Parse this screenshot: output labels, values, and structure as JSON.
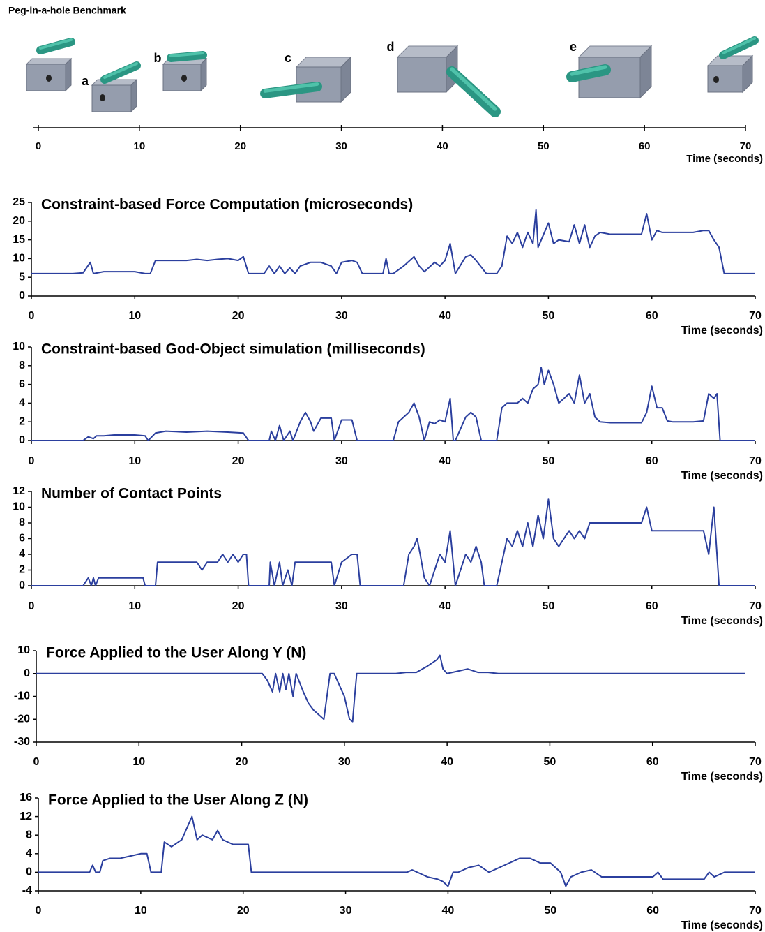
{
  "chart_data": [
    {
      "type": "timeline",
      "title": "Peg-in-a-hole Benchmark",
      "annotations": [
        "a",
        "b",
        "c",
        "d",
        "e"
      ],
      "xlim": [
        0,
        70
      ],
      "xticks": [
        0,
        10,
        20,
        30,
        40,
        50,
        60,
        70
      ],
      "x_label": "Time (seconds)"
    },
    {
      "type": "line",
      "title": "Constraint-based Force Computation (microseconds)",
      "x_label": "Time (seconds)",
      "xlim": [
        0,
        70
      ],
      "xticks": [
        0,
        10,
        20,
        30,
        40,
        50,
        60,
        70
      ],
      "ylim": [
        0,
        25
      ],
      "yticks": [
        0,
        5,
        10,
        15,
        20,
        25
      ],
      "color": "#2b3f9e",
      "x": [
        0,
        1,
        2,
        3,
        4,
        5,
        5.7,
        6,
        7,
        8,
        9,
        10,
        11,
        11.5,
        12,
        13,
        14,
        15,
        16,
        17,
        18,
        19,
        20,
        20.5,
        21,
        22,
        22.5,
        23,
        23.5,
        24,
        24.5,
        25,
        25.5,
        26,
        27,
        28,
        29,
        29.5,
        30,
        31,
        31.5,
        32,
        33,
        34,
        34.3,
        34.6,
        35,
        36,
        37,
        37.5,
        38,
        39,
        39.5,
        40,
        40.5,
        41,
        42,
        42.5,
        43,
        44,
        45,
        45.5,
        46,
        46.5,
        47,
        47.5,
        48,
        48.5,
        48.8,
        49,
        50,
        50.5,
        51,
        52,
        52.5,
        53,
        53.5,
        54,
        54.5,
        55,
        56,
        57,
        58,
        59,
        59.5,
        60,
        60.5,
        61,
        62,
        63,
        64,
        65,
        65.5,
        66,
        66.5,
        67,
        68,
        69,
        70
      ],
      "values": [
        6,
        6,
        6,
        6,
        6,
        6.2,
        9,
        6,
        6.5,
        6.5,
        6.5,
        6.5,
        6,
        6,
        9.5,
        9.5,
        9.5,
        9.5,
        9.8,
        9.5,
        9.8,
        10,
        9.5,
        10.5,
        6,
        6,
        6,
        8,
        6,
        8,
        6,
        7.5,
        6,
        8,
        9,
        9,
        8,
        6,
        9,
        9.5,
        9,
        6,
        6,
        6,
        10,
        6,
        6,
        8,
        10.5,
        8,
        6.5,
        9,
        8,
        9.5,
        14,
        6,
        10.5,
        11,
        9.5,
        6,
        6,
        8,
        16,
        14,
        17,
        13,
        17,
        14,
        23,
        13,
        19.5,
        14,
        15,
        14.5,
        19,
        14,
        19,
        13,
        16,
        17,
        16.5,
        16.5,
        16.5,
        16.5,
        22,
        15,
        17.5,
        17,
        17,
        17,
        17,
        17.5,
        17.5,
        15,
        13,
        6,
        6,
        6,
        6
      ]
    },
    {
      "type": "line",
      "title": "Constraint-based God-Object simulation (milliseconds)",
      "x_label": "Time (seconds)",
      "xlim": [
        0,
        70
      ],
      "xticks": [
        0,
        10,
        20,
        30,
        40,
        50,
        60,
        70
      ],
      "ylim": [
        0,
        10
      ],
      "yticks": [
        0,
        2,
        4,
        6,
        8,
        10
      ],
      "color": "#2b3f9e",
      "x": [
        0,
        5,
        5.5,
        6,
        6.3,
        7,
        8,
        10,
        11,
        11.3,
        12,
        13,
        15,
        17,
        19,
        20.5,
        21,
        23,
        23.2,
        23.6,
        24,
        24.4,
        25,
        25.3,
        26,
        26.5,
        27,
        27.3,
        28,
        29,
        29.3,
        30,
        31,
        31.5,
        35,
        35.5,
        36,
        36.5,
        37,
        37.5,
        38,
        38.5,
        39,
        39.5,
        40,
        40.5,
        40.8,
        41,
        42,
        42.5,
        43,
        43.5,
        45,
        45.5,
        46,
        47,
        47.5,
        48,
        48.5,
        49,
        49.3,
        49.6,
        50,
        50.5,
        51,
        52,
        52.5,
        53,
        53.5,
        54,
        54.5,
        55,
        56,
        58,
        59,
        59.5,
        60,
        60.5,
        61,
        61.5,
        62,
        64,
        65,
        65.5,
        66,
        66.3,
        66.6,
        70
      ],
      "values": [
        0,
        0,
        0.4,
        0.2,
        0.5,
        0.5,
        0.6,
        0.6,
        0.5,
        0,
        0.8,
        1,
        0.9,
        1,
        0.9,
        0.8,
        0,
        0,
        1,
        0,
        1.6,
        0,
        1,
        0,
        2,
        3,
        2,
        1,
        2.4,
        2.4,
        0,
        2.2,
        2.2,
        0,
        0,
        2,
        2.5,
        3,
        4,
        2.5,
        0,
        2,
        1.8,
        2.2,
        2,
        4.5,
        0,
        0,
        2.5,
        3,
        2.5,
        0,
        0,
        3.5,
        4,
        4,
        4.5,
        4,
        5.5,
        6,
        7.8,
        6,
        7.5,
        6,
        4,
        5,
        4,
        7,
        4,
        5,
        2.5,
        2,
        1.9,
        1.9,
        1.9,
        3,
        5.8,
        3.5,
        3.5,
        2.1,
        2,
        2,
        2.1,
        5,
        4.5,
        5,
        0,
        0
      ]
    },
    {
      "type": "line",
      "title": "Number of Contact Points",
      "x_label": "Time (seconds)",
      "xlim": [
        0,
        70
      ],
      "xticks": [
        0,
        10,
        20,
        30,
        40,
        50,
        60,
        70
      ],
      "ylim": [
        0,
        12
      ],
      "yticks": [
        0,
        2,
        4,
        6,
        8,
        10,
        12
      ],
      "color": "#2b3f9e",
      "x": [
        0,
        5,
        5.5,
        5.8,
        6,
        6.2,
        6.5,
        10,
        10.8,
        11,
        12,
        12.2,
        16,
        16.5,
        17,
        18,
        18.5,
        19,
        19.5,
        20,
        20.5,
        20.8,
        21,
        23,
        23.1,
        23.5,
        24,
        24.3,
        24.8,
        25.2,
        25.5,
        26,
        29,
        29.3,
        30,
        31,
        31.5,
        31.8,
        36,
        36.5,
        37,
        37.3,
        37.6,
        38,
        38.5,
        39,
        39.5,
        40,
        40.5,
        41,
        42,
        42.5,
        43,
        43.5,
        43.8,
        45,
        46,
        46.5,
        47,
        47.5,
        48,
        48.5,
        49,
        49.5,
        50,
        50.5,
        51,
        52,
        52.5,
        53,
        53.5,
        54,
        55,
        59,
        59.5,
        60,
        61,
        65,
        65.5,
        66,
        66.5,
        70
      ],
      "values": [
        0,
        0,
        1,
        0,
        1,
        0,
        1,
        1,
        1,
        0,
        0,
        3,
        3,
        2,
        3,
        3,
        4,
        3,
        4,
        3,
        4,
        4,
        0,
        0,
        3,
        0,
        3,
        0,
        2,
        0,
        3,
        3,
        3,
        0,
        3,
        4,
        4,
        0,
        0,
        4,
        5,
        6,
        4,
        1,
        0,
        2,
        4,
        3,
        7,
        0,
        4,
        3,
        5,
        3,
        0,
        0,
        6,
        5,
        7,
        5,
        8,
        5,
        9,
        6,
        11,
        6,
        5,
        7,
        6,
        7,
        6,
        8,
        8,
        8,
        10,
        7,
        7,
        7,
        4,
        10,
        0,
        0
      ]
    },
    {
      "type": "line",
      "title": "Force Applied to the User Along Y (N)",
      "x_label": "Time (seconds)",
      "xlim": [
        0,
        70
      ],
      "xticks": [
        0,
        10,
        20,
        30,
        40,
        50,
        60,
        70
      ],
      "ylim": [
        -30,
        10
      ],
      "yticks": [
        -30,
        -20,
        -10,
        0,
        10
      ],
      "color": "#2b3f9e",
      "x": [
        0,
        22,
        22.5,
        23,
        23.3,
        23.7,
        24,
        24.3,
        24.6,
        25,
        25.3,
        26,
        26.5,
        27,
        28,
        28.3,
        28.6,
        29,
        30,
        30.5,
        30.8,
        31,
        31.2,
        35,
        36,
        37,
        38,
        39,
        39.3,
        39.6,
        40,
        41,
        42,
        43,
        44,
        45,
        69
      ],
      "values": [
        0,
        0,
        -3,
        -8,
        0,
        -8,
        0,
        -7,
        0,
        -10,
        0,
        -8,
        -13,
        -16,
        -20,
        -10,
        0,
        0,
        -10,
        -20,
        -21,
        -10,
        0,
        0,
        0.5,
        0.5,
        3,
        6,
        8,
        2,
        0,
        1,
        2,
        0.5,
        0.5,
        0,
        0
      ]
    },
    {
      "type": "line",
      "title": "Force Applied to the User Along Z (N)",
      "x_label": "Time (seconds)",
      "xlim": [
        0,
        70
      ],
      "xticks": [
        0,
        10,
        20,
        30,
        40,
        50,
        60,
        70
      ],
      "ylim": [
        -4,
        16
      ],
      "yticks": [
        -4,
        0,
        4,
        8,
        12,
        16
      ],
      "color": "#2b3f9e",
      "x": [
        0,
        5,
        5.3,
        5.6,
        6,
        6.3,
        7,
        8,
        9,
        10,
        10.6,
        11,
        12,
        12.3,
        13,
        14,
        15,
        15.5,
        16,
        17,
        17.5,
        18,
        19,
        20,
        20.5,
        20.8,
        36,
        36.5,
        37,
        38,
        39,
        39.5,
        40,
        40.5,
        41,
        42,
        43,
        44,
        45,
        46,
        47,
        48,
        49,
        50,
        51,
        51.5,
        52,
        53,
        54,
        55,
        60,
        60.5,
        61,
        65,
        65.5,
        66,
        67,
        70
      ],
      "values": [
        0,
        0,
        1.5,
        0,
        0,
        2.5,
        3,
        3,
        3.5,
        4,
        4,
        0,
        0,
        6.5,
        5.5,
        7,
        12,
        7,
        8,
        7,
        9,
        7,
        6,
        6,
        6,
        0,
        0,
        0.5,
        0,
        -1,
        -1.5,
        -2,
        -3,
        0,
        0,
        1,
        1.5,
        0,
        1,
        2,
        3,
        3,
        2,
        2,
        0,
        -3,
        -1,
        0,
        0.5,
        -1,
        -1,
        0,
        -1.5,
        -1.5,
        0,
        -1,
        0,
        0
      ]
    }
  ]
}
